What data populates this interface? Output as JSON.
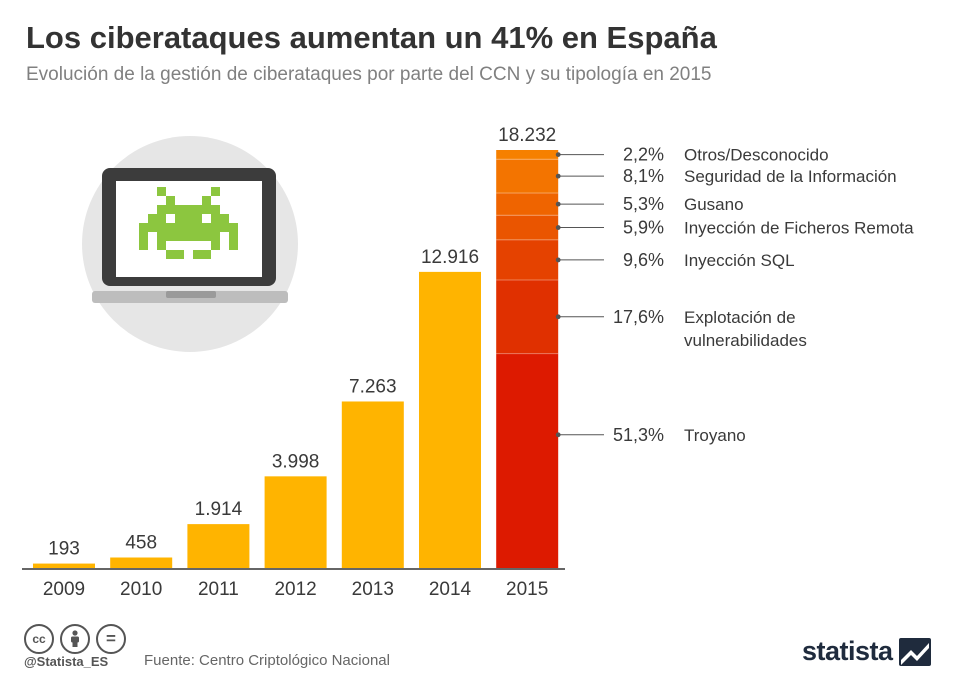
{
  "header": {
    "title": "Los ciberataques aumentan un 41% en España",
    "subtitle": "Evolución de la gestión de ciberataques por parte del CCN y su tipología en 2015"
  },
  "chart_data": {
    "type": "bar",
    "categories": [
      "2009",
      "2010",
      "2011",
      "2012",
      "2013",
      "2014",
      "2015"
    ],
    "values": [
      193,
      458,
      1914,
      3998,
      7263,
      12916,
      18232
    ],
    "value_labels": [
      "193",
      "458",
      "1.914",
      "3.998",
      "7.263",
      "12.916",
      "18.232"
    ],
    "ylim": [
      0,
      18232
    ],
    "grid": false,
    "legend": "none",
    "colors": {
      "bar": "#ffb400",
      "baseline": "#333333"
    },
    "breakdown_2015": {
      "type": "stacked-bar",
      "segments": [
        {
          "label": "Troyano",
          "percent": 51.3,
          "percent_label": "51,3%",
          "color": "#dd1a00"
        },
        {
          "label": "Explotación de vulnerabilidades",
          "label_lines": [
            "Explotación de",
            "vulnerabilidades"
          ],
          "percent": 17.6,
          "percent_label": "17,6%",
          "color": "#e03000"
        },
        {
          "label": "Inyección SQL",
          "percent": 9.6,
          "percent_label": "9,6%",
          "color": "#e54200"
        },
        {
          "label": "Inyección de Ficheros Remota",
          "percent": 5.9,
          "percent_label": "5,9%",
          "color": "#ea5500"
        },
        {
          "label": "Gusano",
          "percent": 5.3,
          "percent_label": "5,3%",
          "color": "#ef6400"
        },
        {
          "label": "Seguridad de la Información",
          "percent": 8.1,
          "percent_label": "8,1%",
          "color": "#f37400"
        },
        {
          "label": "Otros/Desconocido",
          "percent": 2.2,
          "percent_label": "2,2%",
          "color": "#f68000"
        }
      ]
    }
  },
  "illustration": {
    "icons": [
      "laptop-icon",
      "space-invader-icon"
    ],
    "colors": {
      "circle": "#e6e6e6",
      "laptop": "#3c3c3c",
      "screen": "#ffffff",
      "invader": "#8cc63f"
    }
  },
  "footer": {
    "license_icons": [
      "cc-icon",
      "by-icon",
      "nd-icon"
    ],
    "cc_glyph": "cc",
    "nd_glyph": "=",
    "handle": "@Statista_ES",
    "source": "Fuente: Centro Criptológico Nacional",
    "brand": "statista"
  }
}
